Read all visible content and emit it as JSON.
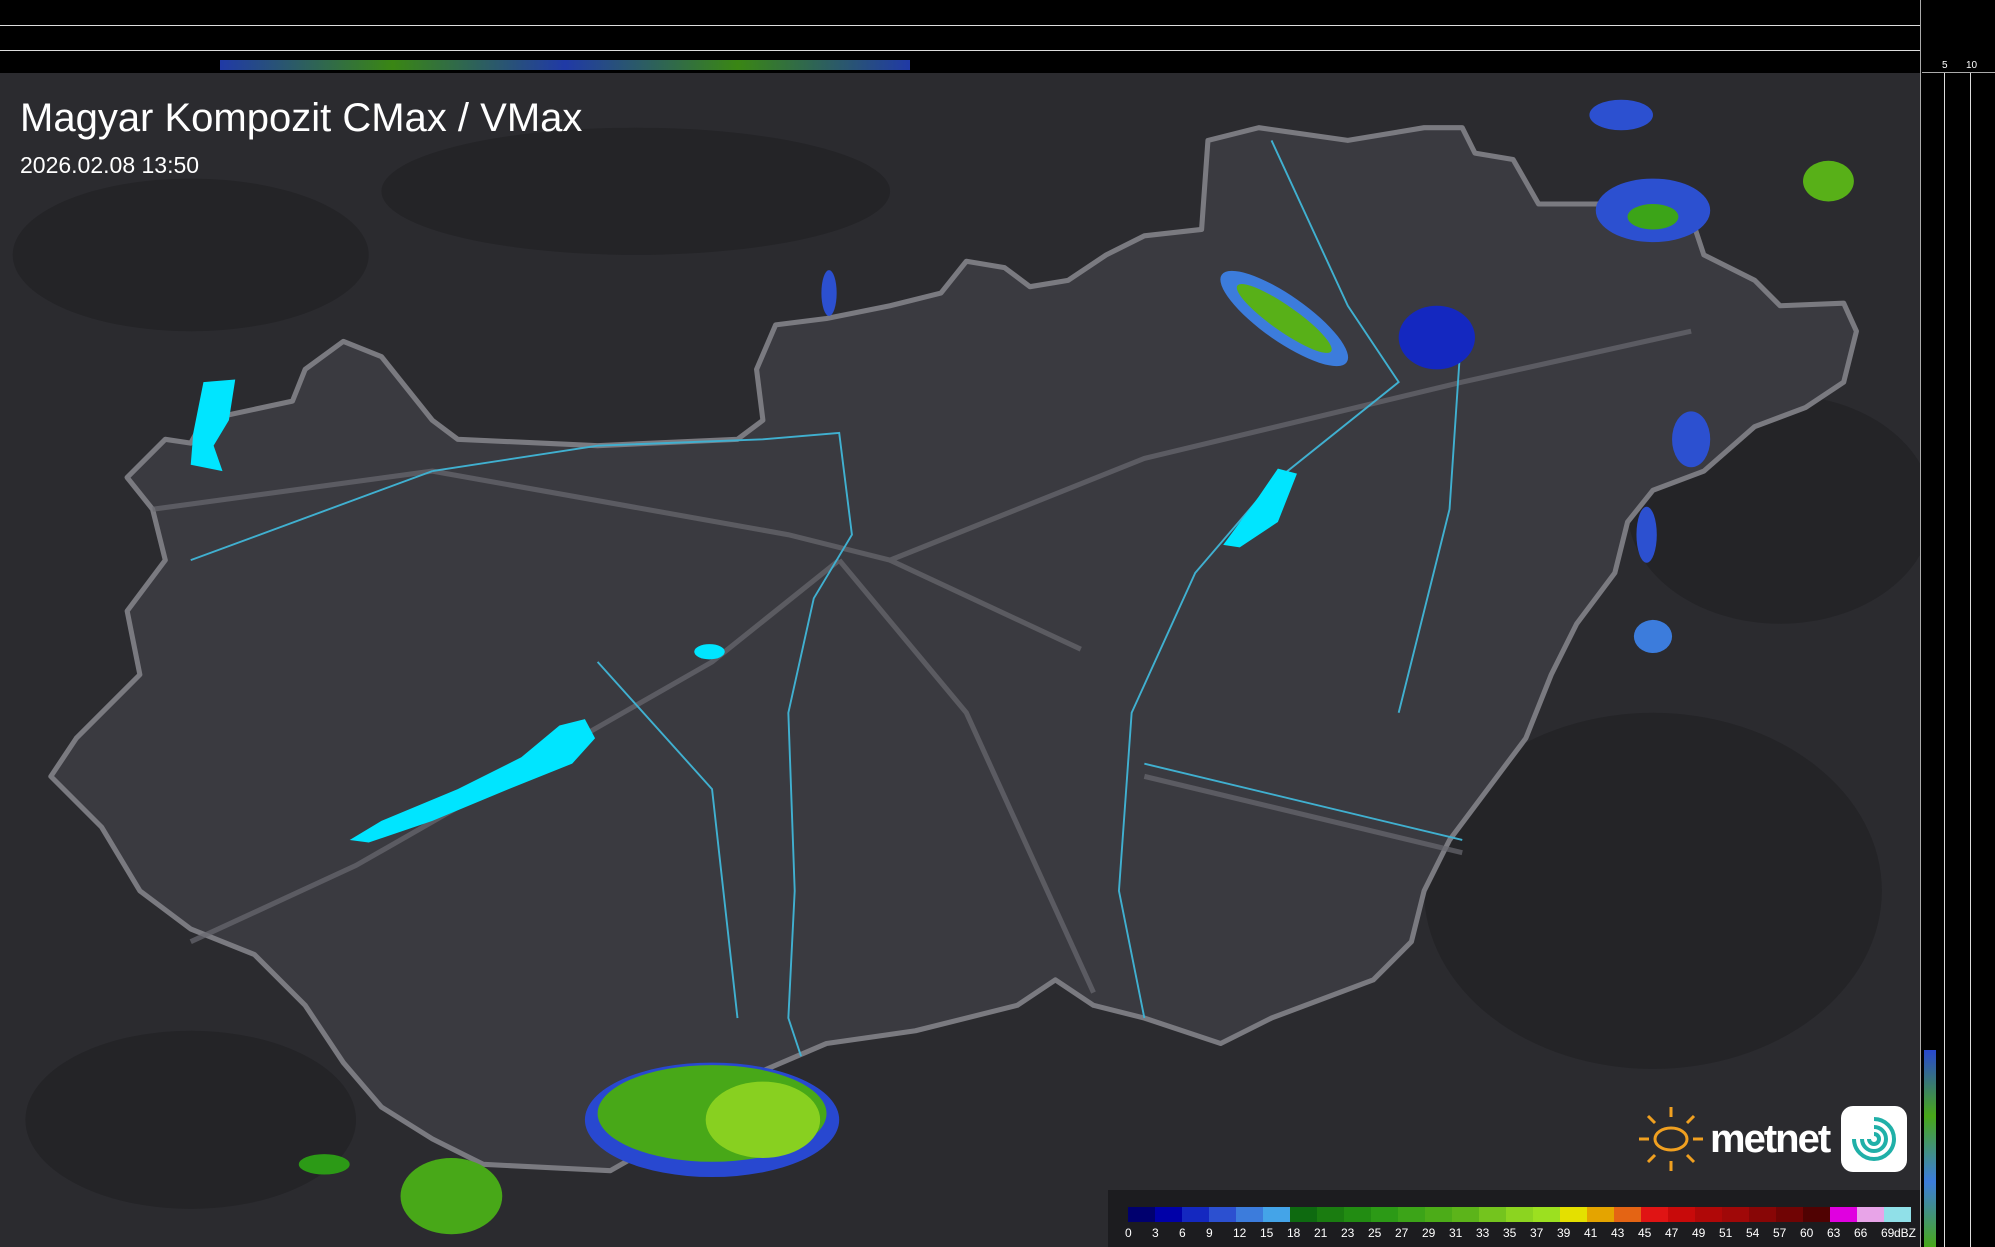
{
  "header": {
    "title": "Magyar Kompozit CMax / VMax",
    "timestamp": "2026.02.08 13:50"
  },
  "profile_axes": {
    "top_ticks": [
      "10",
      "5"
    ],
    "right_ticks": [
      "5",
      "10"
    ]
  },
  "legend": {
    "unit": "dBZ",
    "labels": [
      "0",
      "3",
      "6",
      "9",
      "12",
      "15",
      "18",
      "21",
      "23",
      "25",
      "27",
      "29",
      "31",
      "33",
      "35",
      "37",
      "39",
      "41",
      "43",
      "45",
      "47",
      "49",
      "51",
      "54",
      "57",
      "60",
      "63",
      "66",
      "69"
    ],
    "colors": [
      "#00006e",
      "#0000a8",
      "#1428c0",
      "#2c50d0",
      "#3c7cdc",
      "#44a4e8",
      "#0e6a10",
      "#1a7c10",
      "#228c12",
      "#2c9a16",
      "#3ca418",
      "#4cac18",
      "#5cb41a",
      "#74c41e",
      "#8cd420",
      "#9ce020",
      "#e4e000",
      "#e4a400",
      "#e46414",
      "#e01414",
      "#c80a0a",
      "#b00808",
      "#a00808",
      "#880606",
      "#700404",
      "#500202",
      "#e000e0",
      "#e8a4e8",
      "#90e0e8"
    ]
  },
  "logo": {
    "text": "metnet"
  },
  "colors": {
    "country_fill": "#3a3a40",
    "border": "#7a7a80",
    "rivers": "#40b0d0",
    "lakes": "#00e5ff",
    "background": "#2a2a2e"
  }
}
